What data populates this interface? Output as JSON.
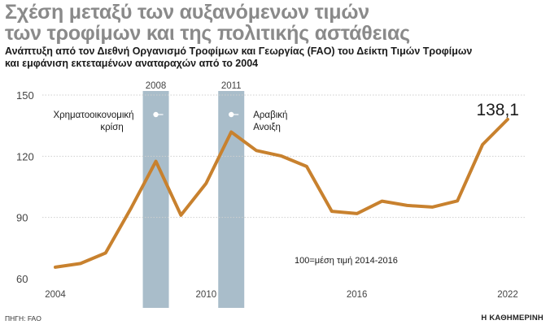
{
  "header": {
    "title_line1": "Σχέση μεταξύ των αυξανόμενων τιμών",
    "title_line2": "των τροφίμων και της πολιτικής αστάθειας",
    "subtitle_line1": "Ανάπτυξη από τον Διεθνή Οργανισμό Τροφίμων και Γεωργίας (FAO) του Δείκτη Τιμών Τροφίμων",
    "subtitle_line2": "και εμφάνιση εκτεταμένων αναταραχών από το 2004"
  },
  "footer": {
    "source": "ΠΗΓΗ: FAO",
    "publisher": "Η ΚΑΘΗΜΕΡΙΝΗ"
  },
  "chart_data": {
    "type": "line",
    "x": [
      2004,
      2005,
      2006,
      2007,
      2008,
      2009,
      2010,
      2011,
      2012,
      2013,
      2014,
      2015,
      2016,
      2017,
      2018,
      2019,
      2020,
      2021,
      2022
    ],
    "series": [
      {
        "values": [
          65.6,
          67.4,
          72.6,
          94.3,
          117.5,
          91.1,
          106.7,
          131.9,
          122.8,
          120.1,
          115.0,
          93.0,
          91.9,
          98.0,
          95.9,
          95.1,
          98.1,
          125.7,
          138.1
        ]
      }
    ],
    "ylim": [
      60,
      150
    ],
    "yticks": [
      60,
      90,
      120,
      150
    ],
    "xticks": [
      2004,
      2010,
      2016,
      2022
    ],
    "grid": true,
    "highlights": [
      {
        "year": 2008,
        "label": "2008",
        "annotation_line1": "Χρηματοοικονομική",
        "annotation_line2": "κρίση"
      },
      {
        "year": 2011,
        "label": "2011",
        "annotation_line1": "Αραβική",
        "annotation_line2": "Ανοιξη"
      }
    ],
    "end_label": "138,1",
    "note": "100=μέση τιμή 2014-2016",
    "colors": {
      "line": "#c8812e",
      "band": "#a9bdca",
      "band_label": "#ffffff",
      "grid": "#cfcfcf",
      "axis_text": "#444444"
    }
  }
}
